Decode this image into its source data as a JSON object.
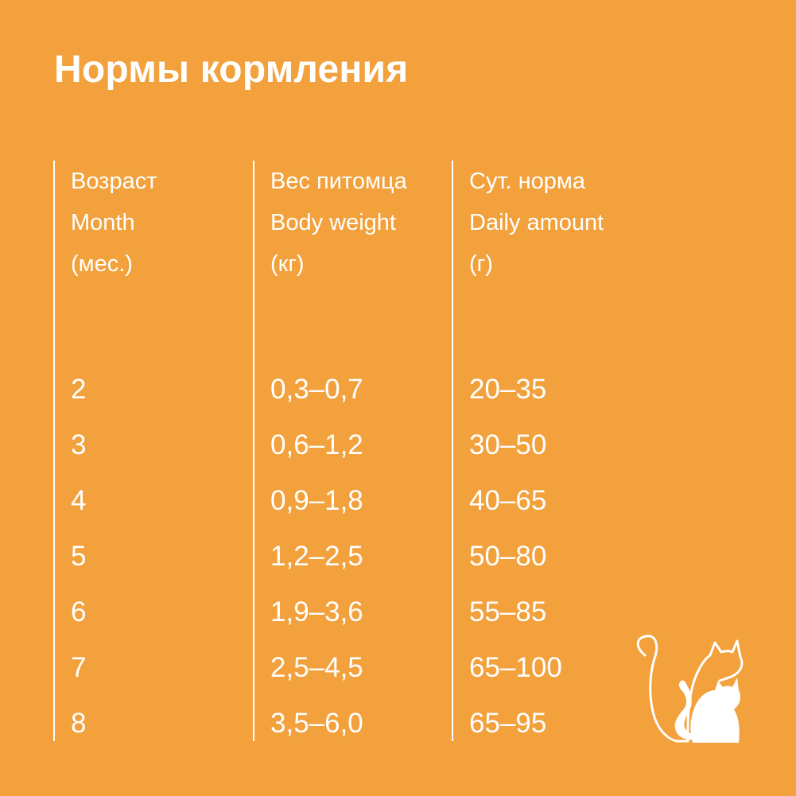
{
  "title": "Нормы кормления",
  "table": {
    "columns": [
      {
        "header": [
          "Возраст",
          "Month",
          "(мес.)"
        ],
        "values": [
          "2",
          "3",
          "4",
          "5",
          "6",
          "7",
          "8"
        ]
      },
      {
        "header": [
          "Вес питомца",
          "Body weight",
          "(кг)"
        ],
        "values": [
          "0,3–0,7",
          "0,6–1,2",
          "0,9–1,8",
          "1,2–2,5",
          "1,9–3,6",
          "2,5–4,5",
          "3,5–6,0"
        ]
      },
      {
        "header": [
          "Сут. норма",
          "Daily amount",
          "(г)"
        ],
        "values": [
          "20–35",
          "30–50",
          "40–65",
          "50–80",
          "55–85",
          "65–100",
          "65–95"
        ]
      }
    ]
  },
  "decoration": {
    "icon": "two-cats-icon"
  },
  "colors": {
    "background": "#F2A13C",
    "text": "#FFFFFF"
  }
}
